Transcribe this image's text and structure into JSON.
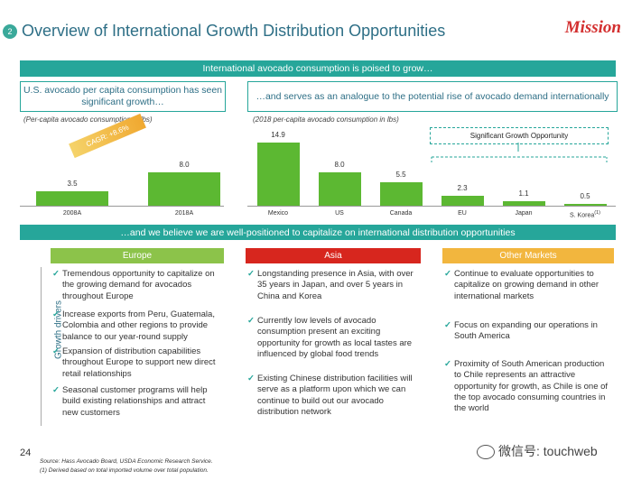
{
  "header": {
    "section_number": "2",
    "title": "Overview of International Growth Distribution Opportunities",
    "logo_text": "Mission"
  },
  "top_banner": "International avocado consumption is poised to grow…",
  "left_panel": {
    "heading": "U.S. avocado per capita consumption has seen significant growth…",
    "note": "(Per-capita avocado consumption in lbs)",
    "cagr_label": "CAGR: +8.6%",
    "chart_data": {
      "type": "bar",
      "categories": [
        "2008A",
        "2018A"
      ],
      "values": [
        3.5,
        8.0
      ],
      "value_labels": [
        "3.5",
        "8.0"
      ],
      "title": "",
      "xlabel": "",
      "ylabel": "",
      "ylim": [
        0,
        15
      ],
      "color": "#5cb832"
    }
  },
  "right_panel": {
    "heading": "…and serves as an analogue to the potential rise of avocado demand internationally",
    "note": "(2018 per-capita avocado consumption in lbs)",
    "opportunity_label": "Significant Growth Opportunity",
    "chart_data": {
      "type": "bar",
      "categories": [
        "Mexico",
        "US",
        "Canada",
        "EU",
        "Japan",
        "S. Korea"
      ],
      "values": [
        14.9,
        8.0,
        5.5,
        2.3,
        1.1,
        0.5
      ],
      "value_labels": [
        "14.9",
        "8.0",
        "5.5",
        "2.3",
        "1.1",
        "0.5"
      ],
      "footnote_marker": "(1)",
      "title": "",
      "xlabel": "",
      "ylabel": "",
      "ylim": [
        0,
        15
      ],
      "color": "#5cb832"
    }
  },
  "mid_banner": "…and we believe we are well-positioned to capitalize on international distribution opportunities",
  "side_label": "Growth drivers",
  "columns": [
    {
      "heading": "Europe",
      "color": "#8cc34a",
      "bullets": [
        "Tremendous opportunity to capitalize on the growing demand for avocados throughout Europe",
        "Increase exports from Peru, Guatemala, Colombia and other regions to provide balance to our year-round supply",
        "Expansion of distribution capabilities throughout Europe to support new direct retail relationships",
        "Seasonal customer programs will help build existing relationships and attract new customers"
      ]
    },
    {
      "heading": "Asia",
      "color": "#d7261e",
      "bullets": [
        "Longstanding presence in Asia, with over 35 years in Japan, and over 5 years in China and Korea",
        "Currently low levels of avocado consumption present an exciting opportunity for growth as local tastes are influenced by global food trends",
        "Existing Chinese distribution facilities will serve as a platform upon which we can continue to build out our avocado distribution network"
      ]
    },
    {
      "heading": "Other Markets",
      "color": "#f2b63e",
      "bullets": [
        "Continue to evaluate opportunities to capitalize on growing demand in other international markets",
        "Focus on expanding our operations in South America",
        "Proximity of South American production to Chile represents an attractive opportunity for growth, as Chile is one of the top avocado consuming countries in the world"
      ]
    }
  ],
  "footer": {
    "page_number": "24",
    "source": "Source: Hass Avocado Board, USDA Economic Research Service.",
    "footnote": "(1)    Derived based on total imported volume over total population.",
    "watermark": "微信号: touchweb"
  }
}
